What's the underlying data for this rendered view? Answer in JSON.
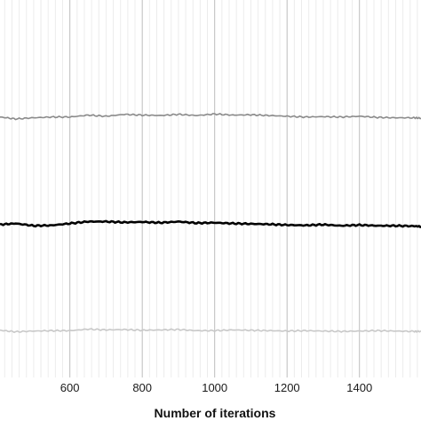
{
  "chart_data": {
    "type": "line",
    "title": "",
    "xlabel": "Number of iterations",
    "ylabel": "",
    "xlim": [
      407,
      1570
    ],
    "ylim": [
      0,
      1
    ],
    "x_ticks": [
      600,
      800,
      1000,
      1200,
      1400
    ],
    "x_tick_labels": [
      "600",
      "800",
      "1000",
      "1200",
      "1400"
    ],
    "minor_grid_step": 20,
    "grid": true,
    "colors": {
      "major_grid": "#bdbdbd",
      "minor_grid": "#ececec",
      "axis_text": "#1a1a1a"
    },
    "series": [
      {
        "color": "#8a8a8a",
        "x": [
          407,
          450,
          500,
          550,
          600,
          650,
          700,
          750,
          800,
          850,
          900,
          950,
          1000,
          1050,
          1100,
          1150,
          1200,
          1250,
          1300,
          1350,
          1400,
          1450,
          1500,
          1550,
          1570
        ],
        "values": [
          0.69,
          0.685,
          0.688,
          0.69,
          0.69,
          0.695,
          0.692,
          0.697,
          0.695,
          0.694,
          0.697,
          0.694,
          0.698,
          0.695,
          0.696,
          0.694,
          0.692,
          0.69,
          0.691,
          0.69,
          0.692,
          0.689,
          0.688,
          0.688,
          0.687
        ]
      },
      {
        "color": "#000000",
        "x": [
          407,
          450,
          500,
          550,
          600,
          650,
          700,
          750,
          800,
          850,
          900,
          950,
          1000,
          1050,
          1100,
          1150,
          1200,
          1250,
          1300,
          1350,
          1400,
          1450,
          1500,
          1550,
          1570
        ],
        "values": [
          0.405,
          0.408,
          0.402,
          0.403,
          0.408,
          0.413,
          0.413,
          0.411,
          0.412,
          0.41,
          0.413,
          0.409,
          0.41,
          0.408,
          0.407,
          0.406,
          0.404,
          0.403,
          0.405,
          0.402,
          0.404,
          0.402,
          0.402,
          0.401,
          0.4
        ]
      },
      {
        "color": "#c8c8c8",
        "x": [
          407,
          450,
          500,
          550,
          600,
          650,
          700,
          750,
          800,
          850,
          900,
          950,
          1000,
          1050,
          1100,
          1150,
          1200,
          1250,
          1300,
          1350,
          1400,
          1450,
          1500,
          1550,
          1570
        ],
        "values": [
          0.125,
          0.121,
          0.123,
          0.124,
          0.124,
          0.128,
          0.126,
          0.127,
          0.125,
          0.126,
          0.127,
          0.124,
          0.124,
          0.126,
          0.125,
          0.124,
          0.123,
          0.124,
          0.123,
          0.122,
          0.123,
          0.124,
          0.123,
          0.122,
          0.122
        ]
      }
    ]
  }
}
